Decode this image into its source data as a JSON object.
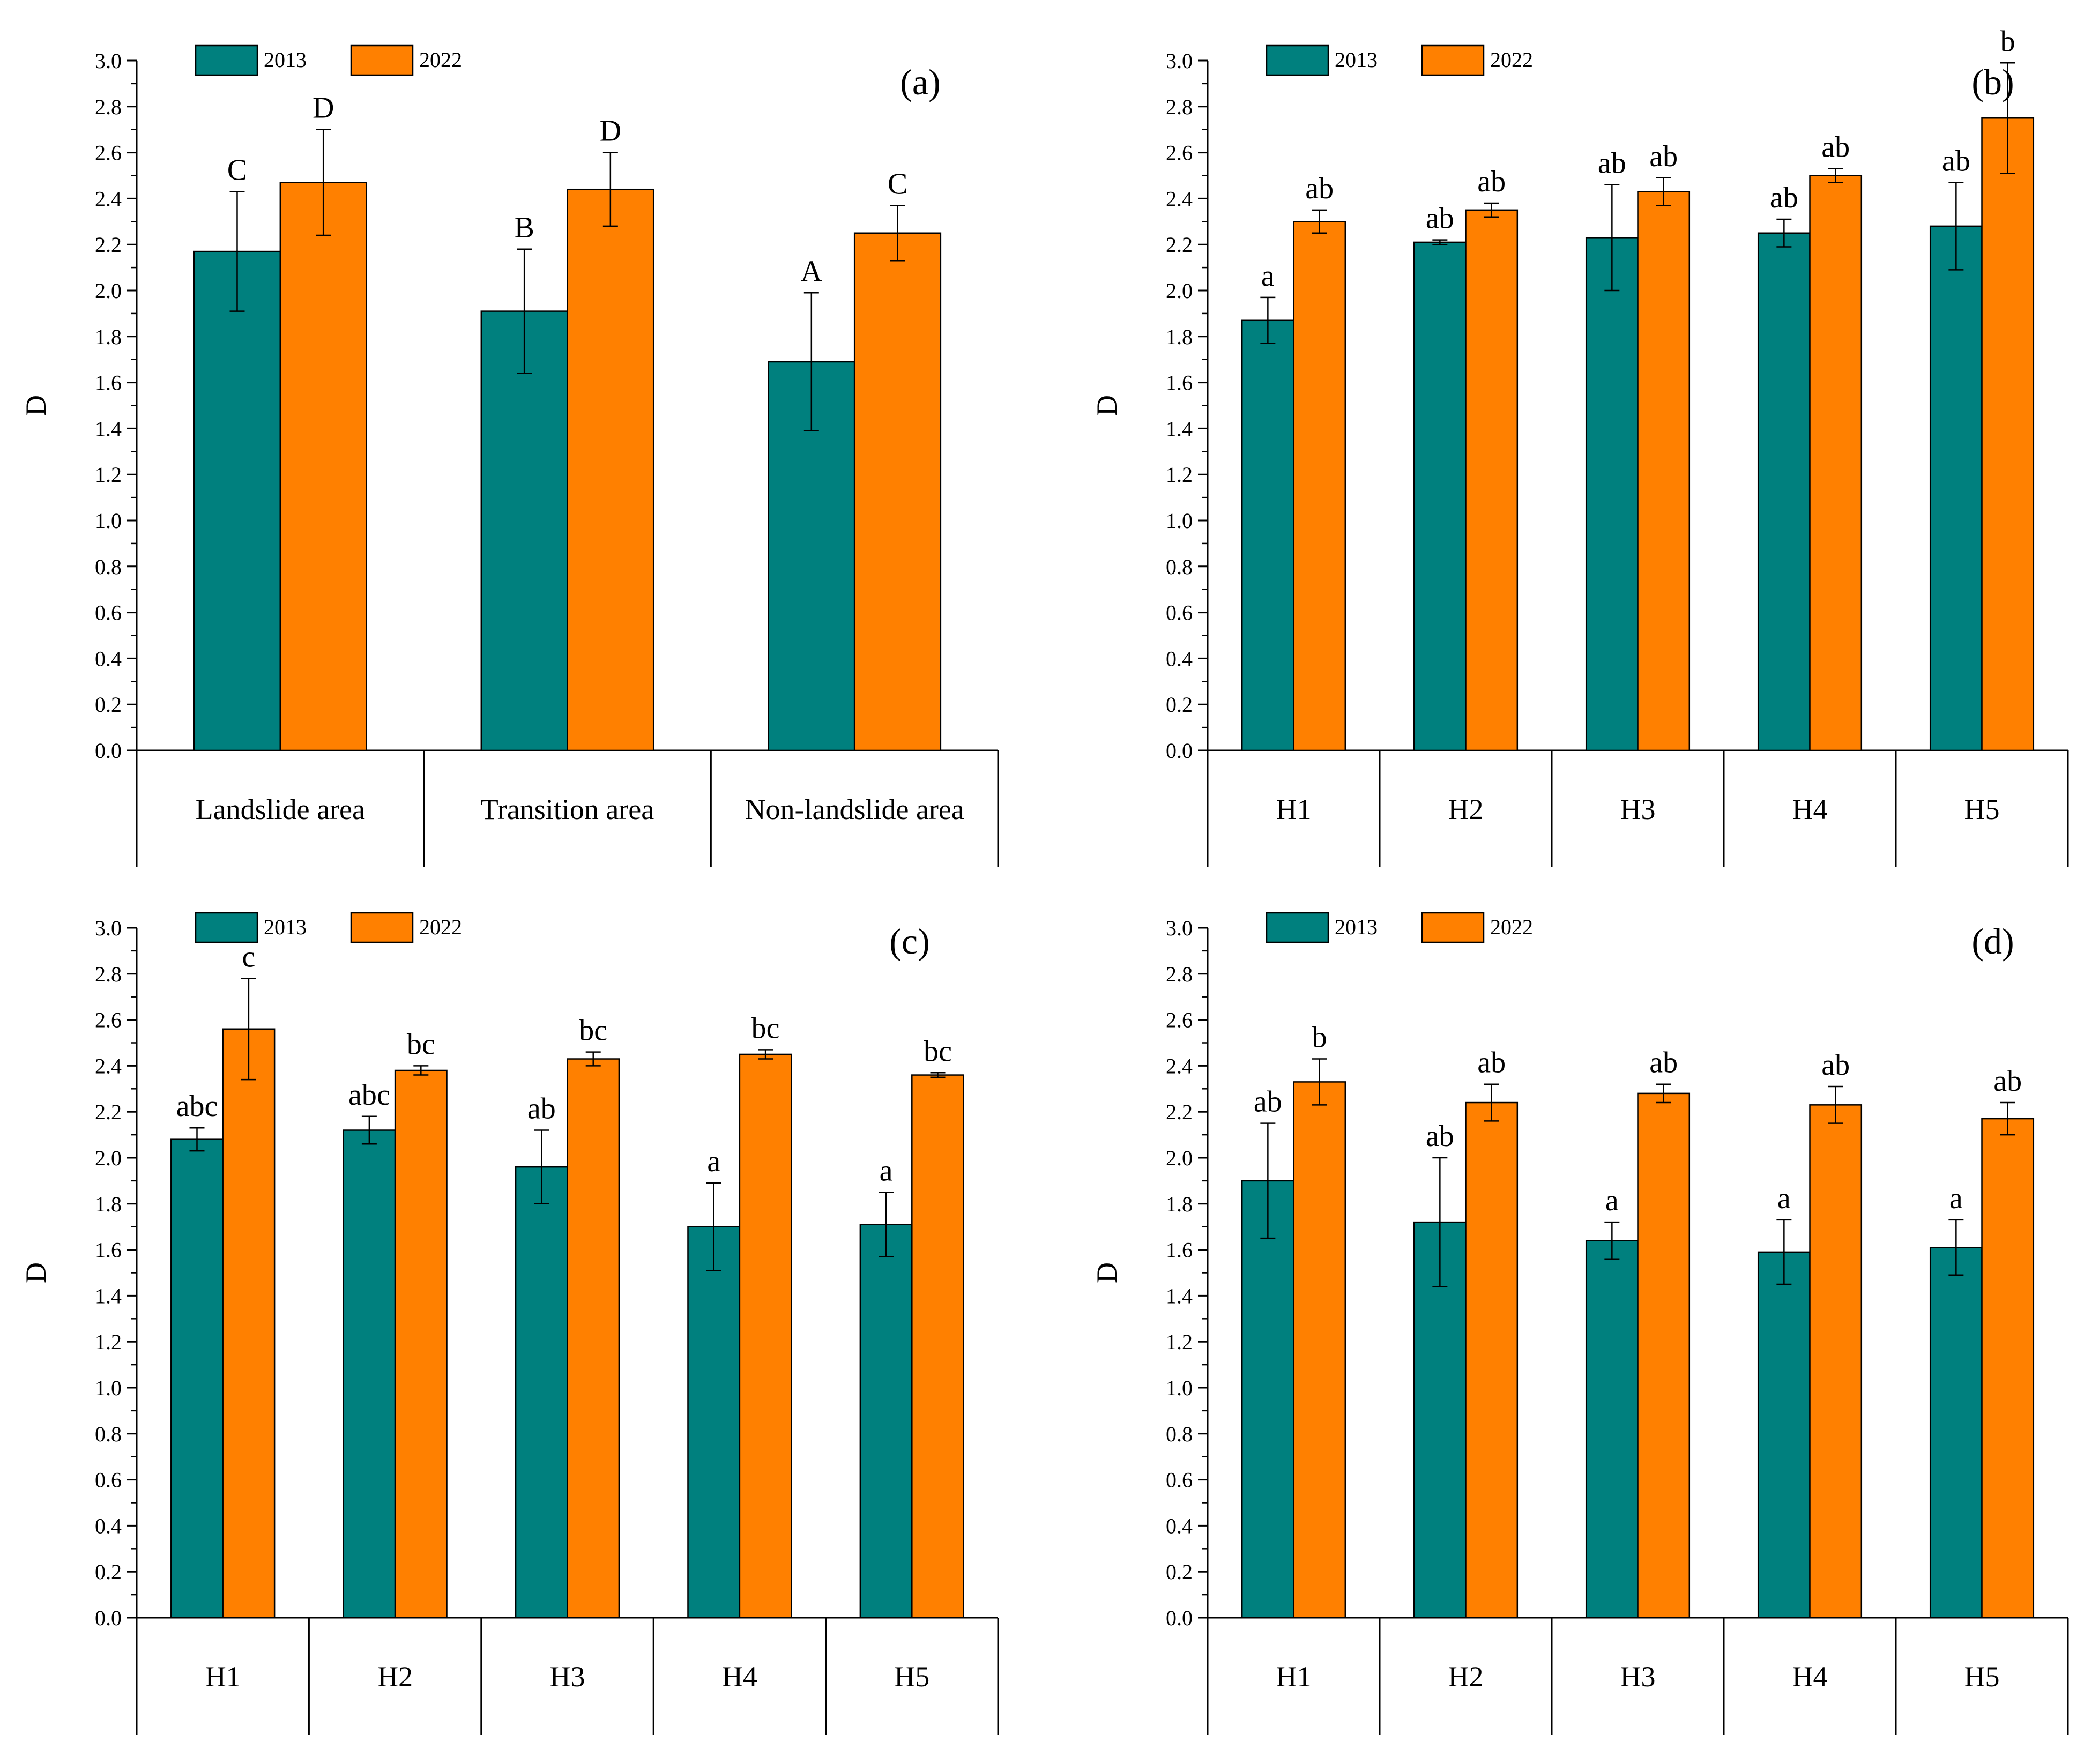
{
  "figure": {
    "colors": {
      "s2013": "#00807e",
      "s2022": "#ff8000",
      "axis": "#000000"
    },
    "legend_labels": [
      "2013",
      "2022"
    ]
  },
  "chart_data": [
    {
      "id": "a",
      "type": "bar",
      "panel_label": "(a)",
      "ylabel": "D",
      "ylim": [
        0,
        3.0
      ],
      "yticks": [
        "0.0",
        "0.2",
        "0.4",
        "0.6",
        "0.8",
        "1.0",
        "1.2",
        "1.4",
        "1.6",
        "1.8",
        "2.0",
        "2.2",
        "2.4",
        "2.6",
        "2.8",
        "3.0"
      ],
      "categories": [
        "Landslide area",
        "Transition area",
        "Non-landslide area"
      ],
      "series": [
        {
          "name": "2013",
          "values": [
            2.17,
            1.91,
            1.69
          ],
          "errors": [
            0.26,
            0.27,
            0.3
          ],
          "labels": [
            "C",
            "B",
            "A"
          ]
        },
        {
          "name": "2022",
          "values": [
            2.47,
            2.44,
            2.25
          ],
          "errors": [
            0.23,
            0.16,
            0.12
          ],
          "labels": [
            "D",
            "D",
            "C"
          ]
        }
      ]
    },
    {
      "id": "b",
      "type": "bar",
      "panel_label": "(b)",
      "ylabel": "D",
      "ylim": [
        0,
        3.0
      ],
      "yticks": [
        "0.0",
        "0.2",
        "0.4",
        "0.6",
        "0.8",
        "1.0",
        "1.2",
        "1.4",
        "1.6",
        "1.8",
        "2.0",
        "2.2",
        "2.4",
        "2.6",
        "2.8",
        "3.0"
      ],
      "categories": [
        "H1",
        "H2",
        "H3",
        "H4",
        "H5"
      ],
      "series": [
        {
          "name": "2013",
          "values": [
            1.87,
            2.21,
            2.23,
            2.25,
            2.28
          ],
          "errors": [
            0.1,
            0.01,
            0.23,
            0.06,
            0.19
          ],
          "labels": [
            "a",
            "ab",
            "ab",
            "ab",
            "ab"
          ]
        },
        {
          "name": "2022",
          "values": [
            2.3,
            2.35,
            2.43,
            2.5,
            2.75
          ],
          "errors": [
            0.05,
            0.03,
            0.06,
            0.03,
            0.24
          ],
          "labels": [
            "ab",
            "ab",
            "ab",
            "ab",
            "b"
          ]
        }
      ]
    },
    {
      "id": "c",
      "type": "bar",
      "panel_label": "(c)",
      "ylabel": "D",
      "ylim": [
        0,
        3.0
      ],
      "yticks": [
        "0.0",
        "0.2",
        "0.4",
        "0.6",
        "0.8",
        "1.0",
        "1.2",
        "1.4",
        "1.6",
        "1.8",
        "2.0",
        "2.2",
        "2.4",
        "2.6",
        "2.8",
        "3.0"
      ],
      "categories": [
        "H1",
        "H2",
        "H3",
        "H4",
        "H5"
      ],
      "series": [
        {
          "name": "2013",
          "values": [
            2.08,
            2.12,
            1.96,
            1.7,
            1.71
          ],
          "errors": [
            0.05,
            0.06,
            0.16,
            0.19,
            0.14
          ],
          "labels": [
            "abc",
            "abc",
            "ab",
            "a",
            "a"
          ]
        },
        {
          "name": "2022",
          "values": [
            2.56,
            2.38,
            2.43,
            2.45,
            2.36
          ],
          "errors": [
            0.22,
            0.02,
            0.03,
            0.02,
            0.01
          ],
          "labels": [
            "c",
            "bc",
            "bc",
            "bc",
            "bc"
          ]
        }
      ]
    },
    {
      "id": "d",
      "type": "bar",
      "panel_label": "(d)",
      "ylabel": "D",
      "ylim": [
        0,
        3.0
      ],
      "yticks": [
        "0.0",
        "0.2",
        "0.4",
        "0.6",
        "0.8",
        "1.0",
        "1.2",
        "1.4",
        "1.6",
        "1.8",
        "2.0",
        "2.2",
        "2.4",
        "2.6",
        "2.8",
        "3.0"
      ],
      "categories": [
        "H1",
        "H2",
        "H3",
        "H4",
        "H5"
      ],
      "series": [
        {
          "name": "2013",
          "values": [
            1.9,
            1.72,
            1.64,
            1.59,
            1.61
          ],
          "errors": [
            0.25,
            0.28,
            0.08,
            0.14,
            0.12
          ],
          "labels": [
            "ab",
            "ab",
            "a",
            "a",
            "a"
          ]
        },
        {
          "name": "2022",
          "values": [
            2.33,
            2.24,
            2.28,
            2.23,
            2.17
          ],
          "errors": [
            0.1,
            0.08,
            0.04,
            0.08,
            0.07
          ],
          "labels": [
            "b",
            "ab",
            "ab",
            "ab",
            "ab"
          ]
        }
      ]
    }
  ]
}
